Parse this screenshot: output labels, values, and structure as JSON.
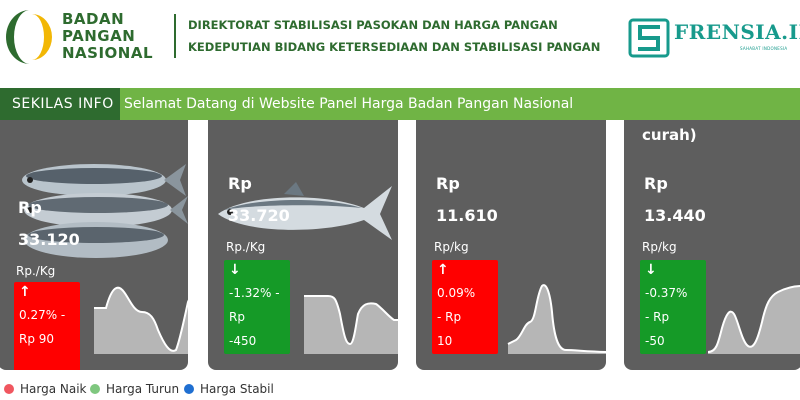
{
  "header": {
    "logo_lines": [
      "BADAN",
      "PANGAN",
      "NASIONAL"
    ],
    "agency_lines": [
      "DIREKTORAT STABILISASI PASOKAN DAN HARGA PANGAN",
      "KEDEPUTIAN BIDANG KETERSEDIAAN DAN STABILISASI PANGAN"
    ],
    "partner_name": "FRENSIA.ID",
    "partner_tagline": "SAHABAT INDONESIA",
    "brand_colors": {
      "dark_green": "#2e6b2f",
      "yellow": "#f2b705",
      "teal": "#179a8c"
    }
  },
  "ticker": {
    "label": "SEKILAS INFO",
    "message": "Selamat Datang di Website Panel Harga Badan Pangan Nasional"
  },
  "cards": [
    {
      "title": "",
      "currency": "Rp",
      "price": "33.120",
      "unit": "Rp./Kg",
      "trend": "up",
      "arrow": "↑",
      "change_pct": "0.27% -",
      "change_label": "Rp 90",
      "change_extra": "",
      "image": "fish-pile"
    },
    {
      "title": "",
      "currency": "Rp",
      "price": "33.720",
      "unit": "Rp./Kg",
      "trend": "down",
      "arrow": "↓",
      "change_pct": "-1.32% -",
      "change_label": "Rp",
      "change_extra": "-450",
      "image": "milkfish"
    },
    {
      "title": "",
      "currency": "Rp",
      "price": "11.610",
      "unit": "Rp/kg",
      "trend": "up",
      "arrow": "↑",
      "change_pct": "0.09%",
      "change_label": "- Rp",
      "change_extra": "10",
      "image": ""
    },
    {
      "title": "curah)",
      "currency": "Rp",
      "price": "13.440",
      "unit": "Rp/kg",
      "trend": "down",
      "arrow": "↓",
      "change_pct": "-0.37%",
      "change_label": "- Rp",
      "change_extra": "-50",
      "image": ""
    }
  ],
  "legend": [
    {
      "label": "Harga Naik",
      "color": "#f0565f"
    },
    {
      "label": "Harga Turun",
      "color": "#7fc77f"
    },
    {
      "label": "Harga Stabil",
      "color": "#1f6fd1"
    }
  ]
}
